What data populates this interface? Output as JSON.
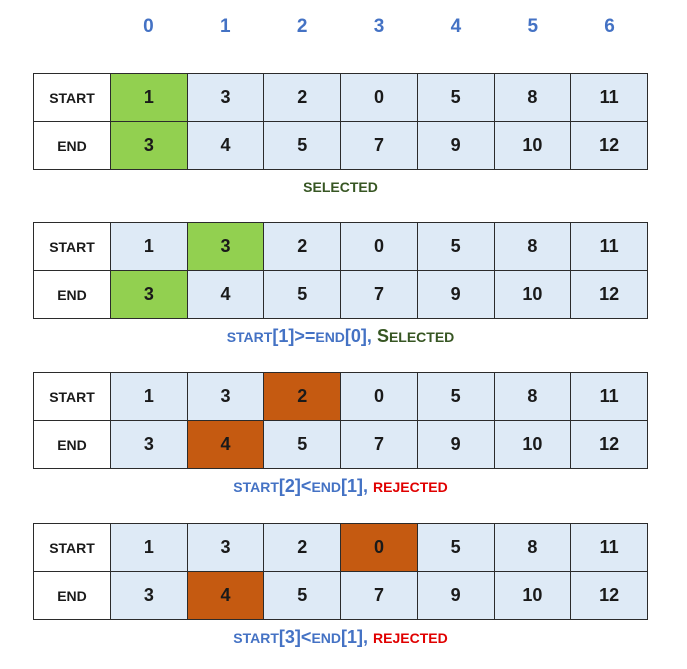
{
  "indices": [
    "0",
    "1",
    "2",
    "3",
    "4",
    "5",
    "6"
  ],
  "row_labels": {
    "start": "START",
    "end": "END"
  },
  "start_values": [
    "1",
    "3",
    "2",
    "0",
    "5",
    "8",
    "11"
  ],
  "end_values": [
    "3",
    "4",
    "5",
    "7",
    "9",
    "10",
    "12"
  ],
  "colors": {
    "selected": "#92d050",
    "rejected": "#c55a11",
    "cell": "#deeaf6",
    "index": "#4472c4"
  },
  "step1": {
    "highlight_start": 0,
    "highlight_end": 0,
    "caption": "SELECTED"
  },
  "step2": {
    "highlight_start": 1,
    "highlight_end": 0,
    "cap_start_kw": "START",
    "cap_start_idx": "[1]",
    "cap_op": ">=",
    "cap_end_kw": "END",
    "cap_end_idx": "[0]",
    "cap_sep": ", ",
    "cap_result_first": "S",
    "cap_result_rest": "ELECTED"
  },
  "step3": {
    "highlight_start": 2,
    "highlight_end": 1,
    "cap_start_kw": "START",
    "cap_start_idx": "[2]",
    "cap_op": "<",
    "cap_end_kw": "END",
    "cap_end_idx": "[1]",
    "cap_sep": ", ",
    "cap_result": "REJECTED"
  },
  "step4": {
    "highlight_start": 3,
    "highlight_end": 1,
    "cap_start_kw": "START",
    "cap_start_idx": "[3]",
    "cap_op": "<",
    "cap_end_kw": "END",
    "cap_end_idx": "[1]",
    "cap_sep": ", ",
    "cap_result": "REJECTED"
  }
}
